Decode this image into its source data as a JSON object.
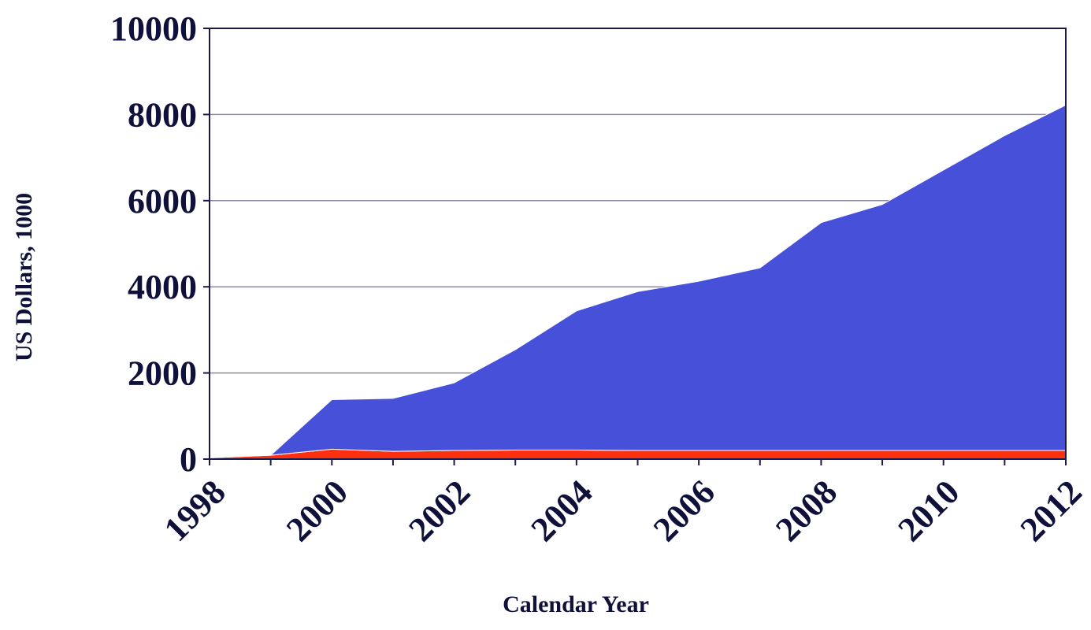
{
  "chart_data": {
    "type": "area",
    "stacked": true,
    "title": "",
    "xlabel": "Calendar Year",
    "ylabel": "US Dollars, 1000",
    "x": [
      1998,
      1999,
      2000,
      2001,
      2002,
      2003,
      2004,
      2005,
      2006,
      2007,
      2008,
      2009,
      2010,
      2011,
      2012
    ],
    "xticks": [
      "1998",
      "2000",
      "2002",
      "2004",
      "2006",
      "2008",
      "2010",
      "2012"
    ],
    "yticks": [
      "0",
      "2000",
      "4000",
      "6000",
      "8000",
      "10000"
    ],
    "xlim": [
      1998,
      2012
    ],
    "ylim": [
      0,
      10000
    ],
    "grid": true,
    "legend": "none",
    "series": [
      {
        "color": "#ff3010",
        "values": [
          30,
          90,
          230,
          180,
          200,
          210,
          210,
          200,
          200,
          200,
          200,
          200,
          200,
          200,
          200
        ]
      },
      {
        "color": "#4650d8",
        "values": [
          0,
          0,
          1150,
          1230,
          1570,
          2330,
          3230,
          3690,
          3930,
          4240,
          5290,
          5710,
          6510,
          7310,
          8020
        ]
      }
    ],
    "colors": {
      "axis": "#1a1a4a",
      "grid": "#8a8aa0",
      "text": "#10113a"
    }
  }
}
